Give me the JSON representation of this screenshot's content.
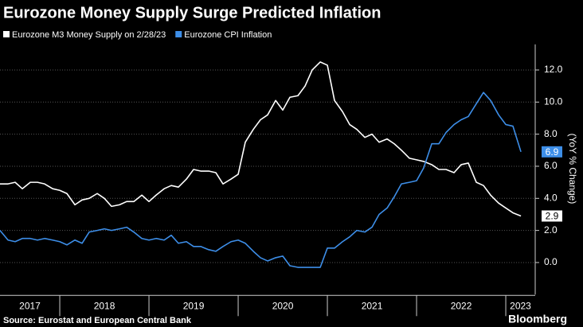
{
  "chart_data": {
    "type": "line",
    "title": "Eurozone Money Supply Surge Predicted Inflation",
    "y_label": "(YoY % Change)",
    "source": "Source: Eurostat and European Central Bank",
    "brand": "Bloomberg",
    "x": [
      2017.33,
      2017.42,
      2017.5,
      2017.58,
      2017.67,
      2017.75,
      2017.83,
      2017.92,
      2018,
      2018.08,
      2018.17,
      2018.25,
      2018.33,
      2018.42,
      2018.5,
      2018.58,
      2018.67,
      2018.75,
      2018.83,
      2018.92,
      2019,
      2019.08,
      2019.17,
      2019.25,
      2019.33,
      2019.42,
      2019.5,
      2019.58,
      2019.67,
      2019.75,
      2019.83,
      2019.92,
      2020,
      2020.08,
      2020.17,
      2020.25,
      2020.33,
      2020.42,
      2020.5,
      2020.58,
      2020.67,
      2020.75,
      2020.83,
      2020.92,
      2021,
      2021.08,
      2021.17,
      2021.25,
      2021.33,
      2021.42,
      2021.5,
      2021.58,
      2021.67,
      2021.75,
      2021.83,
      2021.92,
      2022,
      2022.08,
      2022.17,
      2022.25,
      2022.33,
      2022.42,
      2022.5,
      2022.58,
      2022.67,
      2022.75,
      2022.83,
      2022.92,
      2023,
      2023.08,
      2023.17
    ],
    "series": [
      {
        "name": "Eurozone M3 Money Supply on 2/28/23",
        "color": "#ffffff",
        "values": [
          4.9,
          4.9,
          5.0,
          4.6,
          5.0,
          5.0,
          4.9,
          4.6,
          4.5,
          4.3,
          3.6,
          3.9,
          4.0,
          4.3,
          4.0,
          3.5,
          3.6,
          3.8,
          3.8,
          4.2,
          3.8,
          4.2,
          4.6,
          4.8,
          4.7,
          5.2,
          5.8,
          5.7,
          5.7,
          5.6,
          4.9,
          5.2,
          5.5,
          7.5,
          8.3,
          8.9,
          9.2,
          10.1,
          9.5,
          10.3,
          10.4,
          11.0,
          12.0,
          12.5,
          12.3,
          10.1,
          9.4,
          8.6,
          8.3,
          7.8,
          8.0,
          7.5,
          7.7,
          7.4,
          7.0,
          6.5,
          6.4,
          6.3,
          6.1,
          5.8,
          5.8,
          5.6,
          6.1,
          6.2,
          5.0,
          4.8,
          4.2,
          3.7,
          3.4,
          3.1,
          2.9
        ]
      },
      {
        "name": "Eurozone CPI Inflation",
        "color": "#3d8ee8",
        "values": [
          2.0,
          1.4,
          1.3,
          1.5,
          1.5,
          1.4,
          1.5,
          1.4,
          1.3,
          1.1,
          1.4,
          1.2,
          1.9,
          2.0,
          2.1,
          2.0,
          2.1,
          2.2,
          1.9,
          1.5,
          1.4,
          1.5,
          1.4,
          1.7,
          1.2,
          1.3,
          1.0,
          1.0,
          0.8,
          0.7,
          1.0,
          1.3,
          1.4,
          1.2,
          0.7,
          0.3,
          0.1,
          0.3,
          0.4,
          -0.2,
          -0.3,
          -0.3,
          -0.3,
          -0.3,
          0.9,
          0.9,
          1.3,
          1.6,
          2.0,
          1.9,
          2.2,
          3.0,
          3.4,
          4.1,
          4.9,
          5.0,
          5.1,
          5.9,
          7.4,
          7.4,
          8.1,
          8.6,
          8.9,
          9.1,
          9.9,
          10.6,
          10.1,
          9.2,
          8.6,
          8.5,
          6.9
        ]
      }
    ],
    "xlim": [
      2017.33,
      2023.33
    ],
    "xticks": [
      2017,
      2018,
      2019,
      2020,
      2021,
      2022,
      2023
    ],
    "ylim": [
      -2,
      13.6
    ],
    "yticks": [
      {
        "value": 0,
        "label": "0.0"
      },
      {
        "value": 2,
        "label": "2.0"
      },
      {
        "value": 4,
        "label": "4.0"
      },
      {
        "value": 6,
        "label": "6.0"
      },
      {
        "value": 8,
        "label": "8.0"
      },
      {
        "value": 10,
        "label": "10.0"
      },
      {
        "value": 12,
        "label": "12.0"
      }
    ],
    "grid": true
  }
}
